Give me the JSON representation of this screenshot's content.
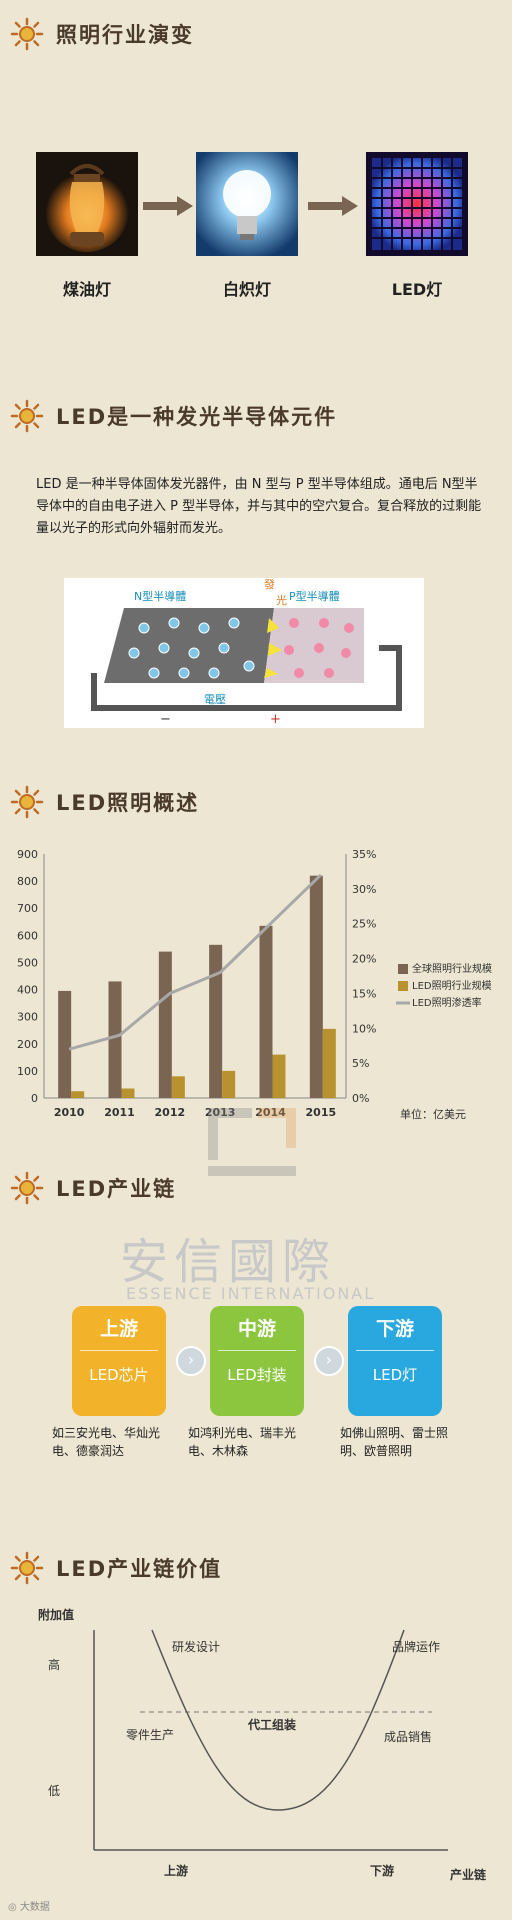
{
  "sections": {
    "evolution": {
      "title": "照明行业演变"
    },
    "semiconductor": {
      "title": "LED是一种发光半导体元件"
    },
    "overview": {
      "title": "LED照明概述"
    },
    "chain": {
      "title": "LED产业链"
    },
    "value": {
      "title": "LED产业链价值"
    }
  },
  "evolution": {
    "items": [
      {
        "label": "煤油灯",
        "icon": "kerosene-lamp"
      },
      {
        "label": "白炽灯",
        "icon": "light-bulb"
      },
      {
        "label": "LED灯",
        "icon": "led-panel"
      }
    ]
  },
  "semiconductor": {
    "paragraph": "LED 是一种半导体固体发光器件，由 N 型与 P 型半导体组成。通电后 N型半导体中的自由电子进入 P 型半导体，并与其中的空穴复合。复合释放的过剩能量以光子的形式向外辐射而发光。",
    "diagram": {
      "n_label": "N型半導體",
      "p_label": "P型半導體",
      "light_label_1": "發",
      "light_label_2": "光",
      "voltage_label": "電壓",
      "minus": "−",
      "plus": "+"
    }
  },
  "chart_data": {
    "type": "bar",
    "categories": [
      "2010",
      "2011",
      "2012",
      "2013",
      "2014",
      "2015"
    ],
    "series": [
      {
        "name": "全球照明行业规模",
        "type": "bar",
        "axis": "left",
        "values": [
          395,
          430,
          540,
          565,
          635,
          820
        ],
        "color": "#7a6552"
      },
      {
        "name": "LED照明行业规模",
        "type": "bar",
        "axis": "left",
        "values": [
          25,
          35,
          80,
          100,
          160,
          255
        ],
        "color": "#b8922e"
      },
      {
        "name": "LED照明渗透率",
        "type": "line",
        "axis": "right",
        "values": [
          0.07,
          0.09,
          0.15,
          0.18,
          0.25,
          0.32
        ],
        "color": "#a8a8a8"
      }
    ],
    "ylim": [
      0,
      900
    ],
    "yticks": [
      "0",
      "100",
      "200",
      "300",
      "400",
      "500",
      "600",
      "700",
      "800",
      "900"
    ],
    "y2lim": [
      0,
      0.35
    ],
    "y2ticks": [
      "0%",
      "5%",
      "10%",
      "15%",
      "20%",
      "25%",
      "30%",
      "35%"
    ],
    "unit_note": "单位：亿美元",
    "legend": "right",
    "grid": false
  },
  "chain": {
    "watermark_cn": "安信國際",
    "watermark_en": "ESSENCE INTERNATIONAL",
    "cards": [
      {
        "title": "上游",
        "subtitle": "LED芯片",
        "desc": "如三安光电、华灿光电、德豪润达",
        "color": "#f2b32a"
      },
      {
        "title": "中游",
        "subtitle": "LED封装",
        "desc": "如鸿利光电、瑞丰光电、木林森",
        "color": "#8cc63f"
      },
      {
        "title": "下游",
        "subtitle": "LED灯",
        "desc": "如佛山照明、雷士照明、欧普照明",
        "color": "#29a8e0"
      }
    ],
    "arrow_glyph": "›"
  },
  "value_curve": {
    "y_axis": "附加值",
    "high": "高",
    "low": "低",
    "x_axis": "产业链",
    "upstream": "上游",
    "downstream": "下游",
    "labels": {
      "rd": "研发设计",
      "brand": "品牌运作",
      "parts": "零件生产",
      "oem": "代工组装",
      "sales": "成品销售"
    }
  },
  "footer": {
    "watermark": "大数据"
  }
}
